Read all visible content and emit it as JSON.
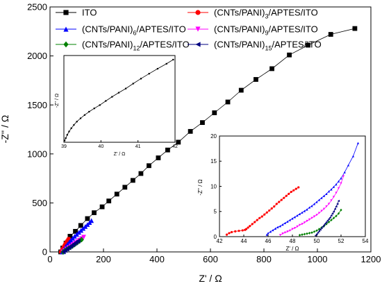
{
  "chart_data": [
    {
      "type": "scatter",
      "xlabel": "Z' / Ω",
      "ylabel": "-Z'' / Ω",
      "xlim": [
        0,
        1200
      ],
      "ylim": [
        0,
        2500
      ],
      "xticks": [
        "0",
        "200",
        "400",
        "600",
        "800",
        "1000",
        "1200"
      ],
      "yticks": [
        "0",
        "500",
        "1000",
        "1500",
        "2000",
        "2500"
      ],
      "legend": [
        {
          "label": "ITO",
          "color": "#000000",
          "marker": "square"
        },
        {
          "label": "(CNTs/PANI)",
          "sub": "3",
          "suffix": "/APTES/ITO",
          "color": "#ff0000",
          "marker": "circle"
        },
        {
          "label": "(CNTs/PANI)",
          "sub": "6",
          "suffix": "/APTES/ITO",
          "color": "#0000ff",
          "marker": "triangle-up"
        },
        {
          "label": "(CNTs/PANI)",
          "sub": "9",
          "suffix": "/APTES/ITO",
          "color": "#ff00ff",
          "marker": "triangle-down"
        },
        {
          "label": "(CNTs/PANI)",
          "sub": "12",
          "suffix": "/APTES/ITO",
          "color": "#008000",
          "marker": "diamond"
        },
        {
          "label": "(CNTs/PANI)",
          "sub": "15",
          "suffix": "/APTES/ITO",
          "color": "#000080",
          "marker": "triangle-left"
        }
      ],
      "series": [
        {
          "color": "#000000",
          "marker": "square",
          "x": [
            40,
            48,
            60,
            75,
            95,
            115,
            140,
            165,
            195,
            220,
            250,
            280,
            310,
            340,
            370,
            405,
            440,
            480,
            525,
            570,
            615,
            665,
            715,
            770,
            830,
            895,
            965,
            1050,
            1140
          ],
          "y": [
            0,
            40,
            90,
            160,
            210,
            270,
            340,
            400,
            460,
            520,
            590,
            660,
            730,
            800,
            880,
            960,
            1040,
            1120,
            1230,
            1320,
            1420,
            1530,
            1650,
            1760,
            1870,
            2010,
            2110,
            2220,
            2280
          ]
        },
        {
          "color": "#ff0000",
          "marker": "circle",
          "x": [
            42,
            45,
            48,
            52,
            56,
            60,
            65,
            70
          ],
          "y": [
            0,
            15,
            30,
            50,
            70,
            90,
            110,
            130
          ]
        },
        {
          "color": "#0000ff",
          "marker": "triangle-up",
          "x": [
            46,
            50,
            55,
            60,
            66,
            72,
            78,
            85,
            92,
            100,
            108,
            116,
            124,
            132,
            140,
            148,
            155
          ],
          "y": [
            0,
            20,
            40,
            60,
            80,
            100,
            120,
            140,
            160,
            180,
            200,
            220,
            240,
            260,
            280,
            300,
            320
          ]
        },
        {
          "color": "#ff00ff",
          "marker": "triangle-down",
          "x": [
            48,
            55,
            62,
            70,
            78,
            86,
            94,
            102,
            110,
            118,
            126
          ],
          "y": [
            0,
            15,
            30,
            45,
            60,
            75,
            90,
            105,
            120,
            135,
            150
          ]
        },
        {
          "color": "#008000",
          "marker": "diamond",
          "x": [
            49,
            55,
            62,
            70,
            78,
            86,
            94,
            102,
            110,
            118
          ],
          "y": [
            0,
            12,
            25,
            38,
            50,
            65,
            80,
            95,
            110,
            125
          ]
        },
        {
          "color": "#000080",
          "marker": "triangle-left",
          "x": [
            50,
            56,
            63,
            70,
            77,
            84,
            91,
            98,
            105
          ],
          "y": [
            0,
            14,
            28,
            42,
            56,
            70,
            84,
            98,
            112
          ]
        }
      ]
    },
    {
      "type": "scatter",
      "xlabel": "Z' / Ω",
      "ylabel": "-Z'' / Ω",
      "xlim": [
        39,
        42
      ],
      "xticks": [
        "39",
        "40",
        "41",
        "42"
      ],
      "series": [
        {
          "color": "#000000",
          "marker": "square",
          "x": [
            39.02,
            39.05,
            39.09,
            39.14,
            39.2,
            39.27,
            39.35,
            39.45,
            39.56,
            39.68,
            39.82,
            39.97,
            40.13,
            40.3,
            40.48,
            40.67,
            40.87,
            41.08,
            41.3,
            41.53,
            41.77,
            41.95
          ],
          "y": [
            0.02,
            0.05,
            0.09,
            0.13,
            0.17,
            0.21,
            0.25,
            0.29,
            0.33,
            0.37,
            0.41,
            0.45,
            0.5,
            0.55,
            0.6,
            0.65,
            0.71,
            0.77,
            0.83,
            0.89,
            0.95,
            1.0
          ]
        }
      ]
    },
    {
      "type": "scatter",
      "xlabel": "Z' / Ω",
      "ylabel": "-Z'' / Ω",
      "xlim": [
        42,
        54
      ],
      "ylim": [
        0,
        20
      ],
      "xticks": [
        "42",
        "44",
        "46",
        "48",
        "50",
        "52",
        "54"
      ],
      "yticks": [
        "0",
        "5",
        "10",
        "15",
        "20"
      ],
      "series": [
        {
          "color": "#ff0000",
          "marker": "circle",
          "x": [
            42.6,
            42.8,
            43.0,
            43.3,
            43.6,
            43.9,
            44.1,
            44.2,
            44.35,
            44.5,
            44.7,
            44.9,
            45.1,
            45.3,
            45.5,
            45.7,
            45.9,
            46.1,
            46.3,
            46.5,
            46.7,
            46.9,
            47.1,
            47.3,
            47.5,
            47.7,
            47.9,
            48.1,
            48.3,
            48.5
          ],
          "y": [
            0.4,
            0.7,
            0.9,
            1.05,
            1.15,
            1.25,
            1.35,
            1.5,
            1.8,
            2.1,
            2.5,
            2.9,
            3.3,
            3.7,
            4.0,
            4.4,
            4.8,
            5.2,
            5.6,
            6.0,
            6.5,
            6.9,
            7.3,
            7.7,
            8.1,
            8.5,
            8.9,
            9.2,
            9.5,
            9.8
          ]
        },
        {
          "color": "#0000ff",
          "marker": "triangle-up",
          "x": [
            45.9,
            46.0,
            46.2,
            46.4,
            46.6,
            46.8,
            47.0,
            47.2,
            47.4,
            47.6,
            47.8,
            48.0,
            48.2,
            48.4,
            48.6,
            48.8,
            49.0,
            49.2,
            49.4,
            49.6,
            49.8,
            50.0,
            50.2,
            50.4,
            50.6,
            50.8,
            51.0,
            51.2,
            51.4,
            51.6,
            51.8,
            52.0,
            52.3,
            52.6,
            53.0,
            53.4
          ],
          "y": [
            0.4,
            0.7,
            1.0,
            1.3,
            1.6,
            1.9,
            2.1,
            2.4,
            2.7,
            3.0,
            3.3,
            3.6,
            3.9,
            4.2,
            4.5,
            4.8,
            5.1,
            5.4,
            5.8,
            6.1,
            6.5,
            6.9,
            7.3,
            7.7,
            8.1,
            8.5,
            9.0,
            9.4,
            9.9,
            10.4,
            11.0,
            11.6,
            12.8,
            14.2,
            16.0,
            18.6
          ]
        },
        {
          "color": "#ff00ff",
          "marker": "triangle-down",
          "x": [
            47.0,
            47.2,
            47.4,
            47.6,
            47.8,
            48.0,
            48.2,
            48.4,
            48.6,
            48.8,
            49.0,
            49.2,
            49.4,
            49.6,
            49.8,
            50.0,
            50.2,
            50.4,
            50.6,
            50.8,
            51.0,
            51.2,
            51.4,
            51.6,
            51.8,
            52.0,
            52.2
          ],
          "y": [
            0.3,
            0.6,
            0.8,
            1.0,
            1.2,
            1.5,
            1.7,
            2.0,
            2.3,
            2.5,
            2.8,
            3.1,
            3.4,
            3.7,
            4.0,
            4.3,
            4.7,
            5.1,
            5.5,
            6.0,
            6.5,
            7.2,
            7.9,
            8.7,
            9.6,
            10.6,
            12.0
          ]
        },
        {
          "color": "#008000",
          "marker": "diamond",
          "x": [
            48.6,
            48.8,
            49.0,
            49.2,
            49.4,
            49.6,
            49.8,
            50.0,
            50.2,
            50.4,
            50.6,
            50.8,
            51.0,
            51.2,
            51.4,
            51.6,
            51.8,
            52.0
          ],
          "y": [
            0.3,
            0.4,
            0.5,
            0.6,
            0.7,
            0.8,
            1.0,
            1.2,
            1.5,
            1.8,
            2.1,
            2.5,
            2.9,
            3.3,
            3.7,
            4.1,
            4.6,
            5.3
          ]
        },
        {
          "color": "#000080",
          "marker": "triangle-left",
          "x": [
            49.9,
            50.0,
            50.1,
            50.2,
            50.3,
            50.4,
            50.5,
            50.6,
            50.7,
            50.8,
            50.9,
            51.0,
            51.1,
            51.2,
            51.3,
            51.4,
            51.5,
            51.6,
            51.7,
            51.8
          ],
          "y": [
            0.2,
            0.5,
            0.8,
            1.1,
            1.4,
            1.7,
            2.0,
            2.3,
            2.6,
            2.9,
            3.2,
            3.5,
            3.8,
            4.2,
            4.6,
            5.0,
            5.5,
            6.0,
            6.5,
            7.1
          ]
        }
      ]
    }
  ]
}
